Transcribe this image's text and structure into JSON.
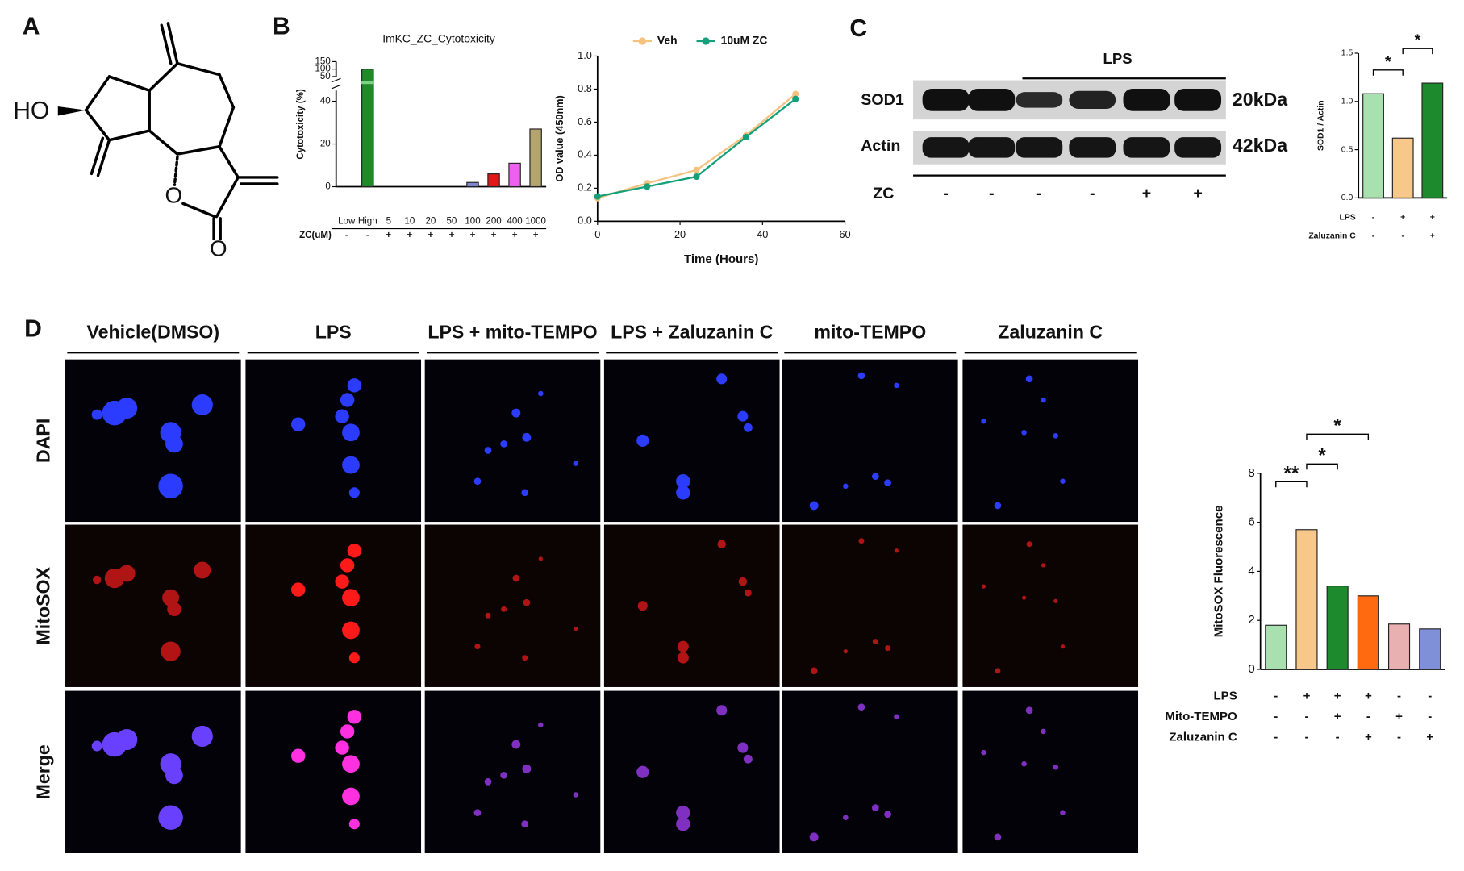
{
  "panels": {
    "a": "A",
    "b": "B",
    "c": "C",
    "d": "D"
  },
  "molecule": {
    "hydroxyl": "HO",
    "ring_oxygen": "O",
    "carbonyl_oxygen": "O"
  },
  "chart_data": [
    {
      "type": "bar",
      "title": "ImKC_ZC_Cytotoxicity",
      "y_label": "Cytotoxicity (%)",
      "categories": [
        "Low",
        "High",
        "5",
        "10",
        "20",
        "50",
        "100",
        "200",
        "400",
        "1000"
      ],
      "values": [
        0,
        100,
        0,
        0,
        0,
        0,
        2,
        6,
        11,
        27
      ],
      "colors": [
        "#ffffff",
        "#1f8a2a",
        "#ffffff",
        "#ffffff",
        "#ffffff",
        "#ffffff",
        "#8088d0",
        "#e01818",
        "#f060f0",
        "#b4a470"
      ],
      "ylim": [
        0,
        150
      ],
      "y_break": [
        45,
        50
      ],
      "yticks": [
        0,
        20,
        40,
        50,
        100,
        150
      ],
      "rows": [
        {
          "label": "ZC(uM)",
          "values": [
            "-",
            "-",
            "+",
            "+",
            "+",
            "+",
            "+",
            "+",
            "+",
            "+"
          ]
        }
      ]
    },
    {
      "type": "line",
      "x_label": "Time (Hours)",
      "y_label": "OD value (450nm)",
      "x": [
        0,
        12,
        24,
        36,
        48
      ],
      "series": [
        {
          "name": "Veh",
          "color": "#f5c27f",
          "values": [
            0.14,
            0.23,
            0.31,
            0.52,
            0.77
          ]
        },
        {
          "name": "10uM ZC",
          "color": "#14a07a",
          "values": [
            0.15,
            0.21,
            0.27,
            0.51,
            0.74
          ]
        }
      ],
      "xlim": [
        0,
        60
      ],
      "xticks": [
        0,
        20,
        40,
        60
      ],
      "ylim": [
        0,
        1
      ],
      "yticks": [
        {
          "value": 0,
          "label": "0.0"
        },
        0.2,
        0.4,
        0.6,
        0.8,
        {
          "value": 1,
          "label": "1.0"
        }
      ],
      "legend": "top"
    },
    {
      "type": "bar",
      "y_label": "SOD1 / Actin",
      "categories": [
        null,
        null,
        null
      ],
      "values": [
        1.08,
        0.62,
        1.19
      ],
      "colors": [
        "#a8e0b0",
        "#f8c88a",
        "#1e8a2e"
      ],
      "ylim": [
        0,
        1.5
      ],
      "yticks": [
        {
          "value": 0,
          "label": "0.0"
        },
        0.5,
        {
          "value": 1,
          "label": "1.0"
        },
        1.5
      ],
      "rows": [
        {
          "label": "LPS",
          "values": [
            "-",
            "+",
            "+"
          ]
        },
        {
          "label": "Zaluzanin C",
          "values": [
            "-",
            "-",
            "+"
          ]
        }
      ],
      "significance": [
        "*",
        "*"
      ]
    },
    {
      "type": "bar",
      "y_label": "MitoSOX Fluorescence",
      "categories": [
        null,
        null,
        null,
        null,
        null,
        null
      ],
      "values": [
        1.8,
        5.7,
        3.4,
        3.0,
        1.85,
        1.65
      ],
      "colors": [
        "#a8e0b0",
        "#f8c88a",
        "#1e8a2e",
        "#ff6a10",
        "#e8b0b0",
        "#8090d8"
      ],
      "ylim": [
        0,
        8
      ],
      "yticks": [
        0,
        2,
        4,
        6,
        8
      ],
      "rows": [
        {
          "label": "LPS",
          "values": [
            "-",
            "+",
            "+",
            "+",
            "-",
            "-"
          ]
        },
        {
          "label": "Mito-TEMPO",
          "values": [
            "-",
            "-",
            "+",
            "-",
            "+",
            "-"
          ]
        },
        {
          "label": "Zaluzanin C",
          "values": [
            "-",
            "-",
            "-",
            "+",
            "-",
            "+"
          ]
        }
      ],
      "significance": [
        "**",
        "*",
        "*"
      ]
    }
  ],
  "western": {
    "treatment": "LPS",
    "rows": [
      "SOD1",
      "Actin"
    ],
    "sizes": [
      "20kDa",
      "42kDa"
    ],
    "row_label": "ZC",
    "signs": [
      "-",
      "-",
      "-",
      "-",
      "+",
      "+"
    ]
  },
  "imaging": {
    "columns": [
      "Vehicle(DMSO)",
      "LPS",
      "LPS + mito-TEMPO",
      "LPS + Zaluzanin C",
      "mito-TEMPO",
      "Zaluzanin C"
    ],
    "rows": [
      "DAPI",
      "MitoSOX",
      "Merge"
    ]
  }
}
